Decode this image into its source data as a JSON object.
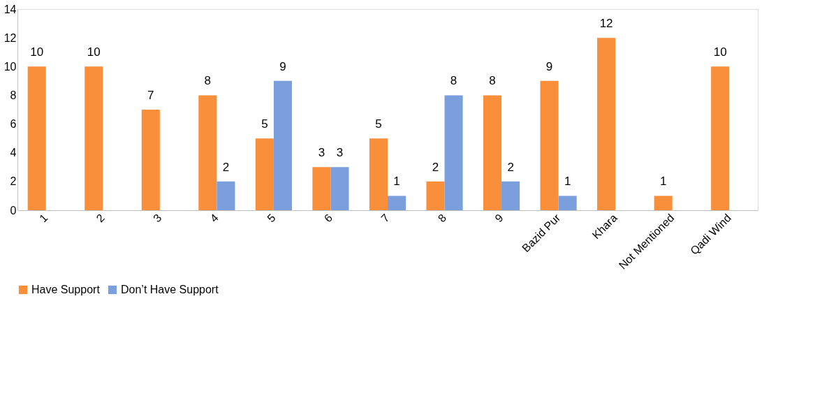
{
  "chart_data": {
    "type": "bar",
    "categories": [
      "1",
      "2",
      "3",
      "4",
      "5",
      "6",
      "7",
      "8",
      "9",
      "Bazid Pur",
      "Khara",
      "Not Mentioned",
      "Qadi Wind"
    ],
    "series": [
      {
        "name": "Have Support",
        "color": "#f98e3b",
        "values": [
          10,
          10,
          7,
          8,
          5,
          3,
          5,
          2,
          8,
          9,
          12,
          1,
          10
        ]
      },
      {
        "name": "Don’t Have Support",
        "color": "#7a9fdc",
        "values": [
          null,
          null,
          null,
          2,
          9,
          3,
          1,
          8,
          2,
          1,
          null,
          null,
          null
        ]
      }
    ],
    "ylim": [
      0,
      14
    ],
    "yticks": [
      0,
      2,
      4,
      6,
      8,
      10,
      12,
      14
    ],
    "grid": false,
    "legend": "bottom",
    "data_labels": true
  }
}
